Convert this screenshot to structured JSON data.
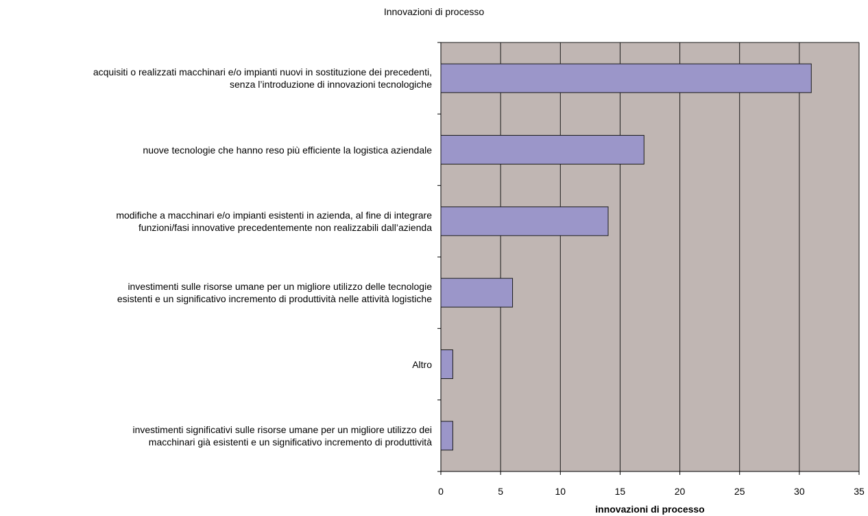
{
  "chart_data": {
    "type": "bar",
    "orientation": "horizontal",
    "title": "Innovazioni di processo",
    "xlabel": "innovazioni di processo",
    "ylabel": "",
    "xlim": [
      0,
      35
    ],
    "xticks": [
      0,
      5,
      10,
      15,
      20,
      25,
      30,
      35
    ],
    "grid": true,
    "categories": [
      "acquisiti o realizzati macchinari e/o impianti nuovi in sostituzione dei precedenti,\nsenza  l’introduzione di innovazioni tecnologiche",
      "nuove tecnologie  che hanno reso più efficiente la logistica aziendale",
      "modifiche a macchinari e/o impianti esistenti in azienda, al fine di integrare\nfunzioni/fasi innovative precedentemente non realizzabili dall’azienda",
      "investimenti sulle risorse umane per un migliore utilizzo delle tecnologie\nesistenti e un significativo incremento di produttività nelle attività logistiche",
      "Altro",
      "investimenti significativi sulle risorse umane per un migliore utilizzo dei\nmacchinari già esistenti e un significativo incremento di produttività"
    ],
    "values": [
      31,
      17,
      14,
      6,
      1,
      1
    ],
    "colors": {
      "bar_fill": "#9b96c9",
      "bar_stroke": "#1a1a1a",
      "plot_background": "#c0b6b3",
      "grid": "#1a1a1a"
    }
  }
}
